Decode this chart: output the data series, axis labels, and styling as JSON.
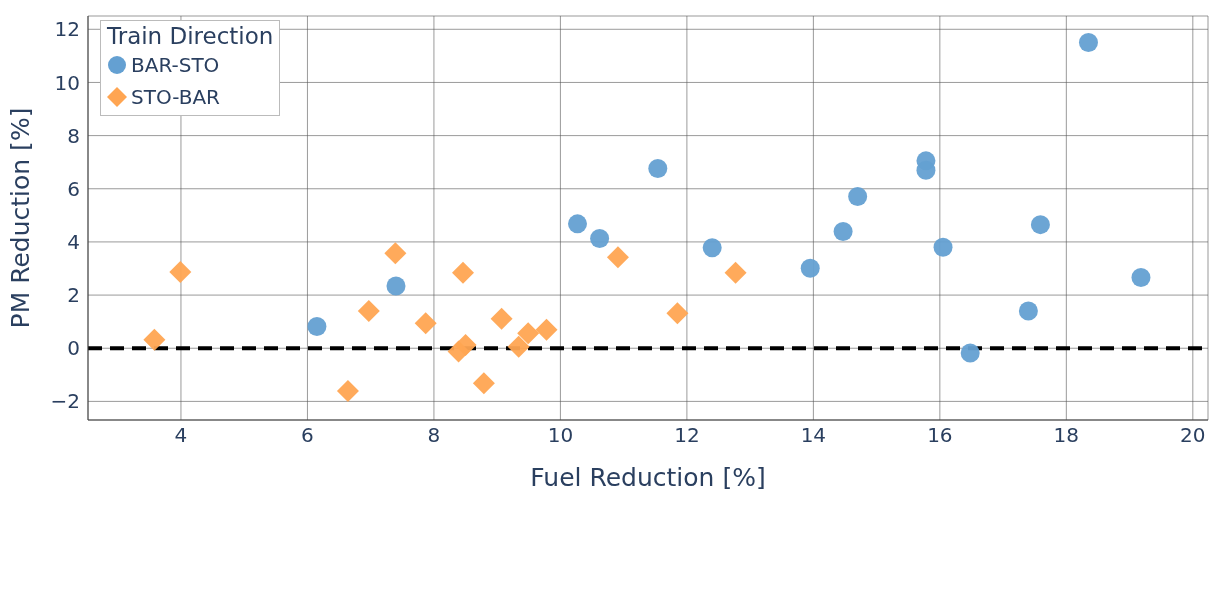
{
  "chart_data": {
    "type": "scatter",
    "xlabel": "Fuel Reduction [%]",
    "ylabel": "PM Reduction [%]",
    "legend_title": "Train Direction",
    "legend": "top left",
    "grid": true,
    "xlim": [
      2.53,
      20.24
    ],
    "ylim": [
      -2.7,
      12.5
    ],
    "xticks": [
      4,
      6,
      8,
      10,
      12,
      14,
      16,
      18,
      20
    ],
    "yticks": [
      -2,
      0,
      2,
      4,
      6,
      8,
      10,
      12
    ],
    "ref_lines": [
      {
        "axis": "y",
        "value": 0,
        "color": "#000000",
        "line_style": "dashed"
      }
    ],
    "series": [
      {
        "name": "BAR-STO",
        "color": "#64a0d2",
        "marker": "circle",
        "x": [
          6.15,
          7.4,
          10.27,
          10.62,
          11.54,
          12.4,
          13.95,
          14.47,
          14.7,
          15.78,
          15.78,
          16.05,
          16.48,
          17.4,
          17.59,
          18.35,
          19.18
        ],
        "values": [
          0.82,
          2.34,
          4.68,
          4.13,
          6.76,
          3.78,
          3.01,
          4.39,
          5.71,
          7.05,
          6.7,
          3.8,
          -0.18,
          1.4,
          4.65,
          11.5,
          2.66
        ]
      },
      {
        "name": "STO-BAR",
        "color": "#ffa552",
        "marker": "diamond",
        "x": [
          3.58,
          3.99,
          6.64,
          6.97,
          7.39,
          7.87,
          8.39,
          8.46,
          8.5,
          8.79,
          9.07,
          9.34,
          9.49,
          9.78,
          10.91,
          11.85,
          12.77
        ],
        "values": [
          0.32,
          2.87,
          -1.61,
          1.4,
          3.57,
          0.94,
          -0.12,
          2.84,
          0.12,
          -1.32,
          1.11,
          0.06,
          0.56,
          0.7,
          3.42,
          1.32,
          2.84
        ]
      }
    ]
  }
}
